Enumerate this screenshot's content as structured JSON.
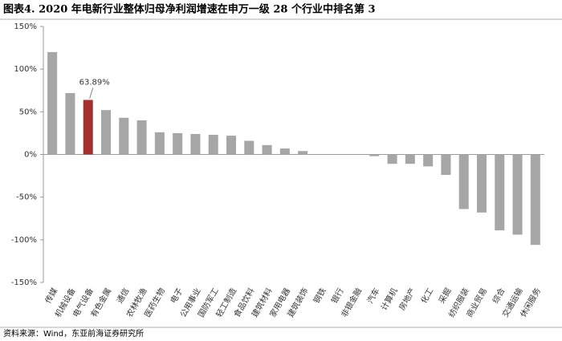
{
  "chart_data": {
    "type": "bar",
    "title": "图表4. 2020 年电新行业整体归母净利润增速在申万一级 28 个行业中排名第 3",
    "source": "资料来源：Wind，东亚前海证券研究所",
    "categories": [
      "传媒",
      "机械设备",
      "电气设备",
      "有色金属",
      "通信",
      "农林牧渔",
      "医药生物",
      "电子",
      "公用事业",
      "国防军工",
      "轻工制造",
      "食品饮料",
      "建筑材料",
      "家用电器",
      "建筑装饰",
      "钢铁",
      "银行",
      "非银金融",
      "汽车",
      "计算机",
      "房地产",
      "化工",
      "采掘",
      "纺织服装",
      "商业贸易",
      "综合",
      "交通运输",
      "休闲服务"
    ],
    "values": [
      120,
      72,
      63.89,
      52,
      43,
      40,
      26,
      25,
      24,
      23,
      22,
      16,
      11,
      7,
      4,
      0,
      0,
      0,
      -2,
      -11,
      -11,
      -14,
      -24,
      -64,
      -68,
      -89,
      -94,
      -106
    ],
    "value_labels": [
      null,
      null,
      "63.89%",
      null,
      null,
      null,
      null,
      null,
      null,
      null,
      null,
      null,
      null,
      null,
      null,
      null,
      null,
      null,
      null,
      null,
      null,
      null,
      null,
      null,
      null,
      null,
      null,
      null
    ],
    "colors": [
      "#a6a6a6",
      "#a6a6a6",
      "#a5312e",
      "#a6a6a6",
      "#a6a6a6",
      "#a6a6a6",
      "#a6a6a6",
      "#a6a6a6",
      "#a6a6a6",
      "#a6a6a6",
      "#a6a6a6",
      "#a6a6a6",
      "#a6a6a6",
      "#a6a6a6",
      "#a6a6a6",
      "#a6a6a6",
      "#a6a6a6",
      "#a6a6a6",
      "#a6a6a6",
      "#a6a6a6",
      "#a6a6a6",
      "#a6a6a6",
      "#a6a6a6",
      "#a6a6a6",
      "#a6a6a6",
      "#a6a6a6",
      "#a6a6a6",
      "#a6a6a6"
    ],
    "ylim": [
      -150,
      150
    ],
    "yticks": [
      {
        "value": -150,
        "label": "-150%"
      },
      {
        "value": -100,
        "label": "-100%"
      },
      {
        "value": -50,
        "label": "-50%"
      },
      {
        "value": 0,
        "label": "0%"
      },
      {
        "value": 50,
        "label": "50%"
      },
      {
        "value": 100,
        "label": "100%"
      },
      {
        "value": 150,
        "label": "150%"
      }
    ],
    "grid": false
  }
}
